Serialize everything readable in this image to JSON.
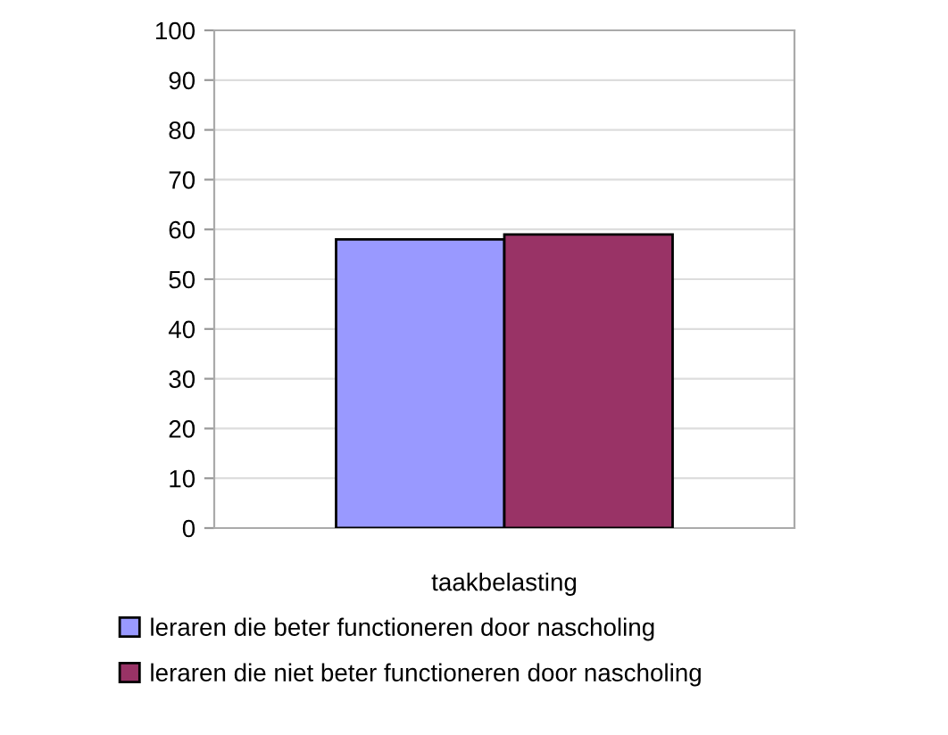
{
  "chart_data": {
    "type": "bar",
    "categories": [
      "taakbelasting"
    ],
    "series": [
      {
        "name": "leraren die beter functioneren door nascholing",
        "color": "#9999ff",
        "values": [
          58
        ]
      },
      {
        "name": "leraren die niet beter functioneren door nascholing",
        "color": "#993366",
        "values": [
          59
        ]
      }
    ],
    "ylim": [
      0,
      100
    ],
    "yticks": [
      0,
      10,
      20,
      30,
      40,
      50,
      60,
      70,
      80,
      90,
      100
    ],
    "grid": "y",
    "legend": "bottom"
  }
}
